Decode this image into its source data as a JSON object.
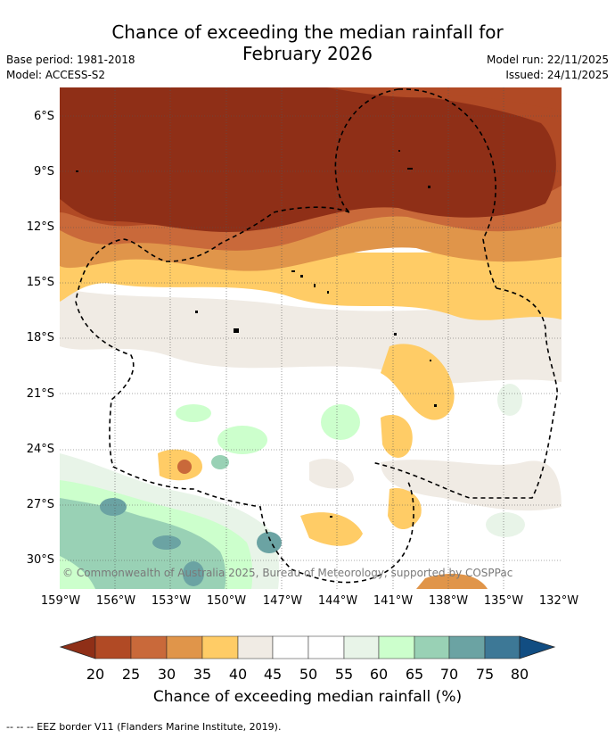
{
  "title_line1": "Chance of exceeding the median rainfall for",
  "title_line2": "February 2026",
  "base_period": "Base period: 1981-2018",
  "model": "Model: ACCESS-S2",
  "model_run": "Model run: 22/11/2025",
  "issued": "Issued: 24/11/2025",
  "lat_labels": [
    "6°S",
    "9°S",
    "12°S",
    "15°S",
    "18°S",
    "21°S",
    "24°S",
    "27°S",
    "30°S"
  ],
  "lon_labels": [
    "159°W",
    "156°W",
    "153°W",
    "150°W",
    "147°W",
    "144°W",
    "141°W",
    "138°W",
    "135°W",
    "132°W"
  ],
  "copyright": "© Commonwealth of Australia 2025, Bureau of Meteorology, supported by COSPPac",
  "legend": {
    "ticks": [
      "20",
      "25",
      "30",
      "35",
      "40",
      "45",
      "50",
      "55",
      "60",
      "65",
      "70",
      "75",
      "80"
    ],
    "colors": [
      "#8f2f17",
      "#b14a25",
      "#c9693a",
      "#e0954a",
      "#ffcc66",
      "#f0ebe4",
      "#ffffff",
      "#ffffff",
      "#e8f4e8",
      "#ccffcc",
      "#99d1b5",
      "#6ba3a3",
      "#3d7896",
      "#114d82"
    ],
    "label": "Chance of exceeding median rainfall (%)"
  },
  "footnote": "--  --  -- EEZ border V11 (Flanders Marine Institute, 2019)."
}
